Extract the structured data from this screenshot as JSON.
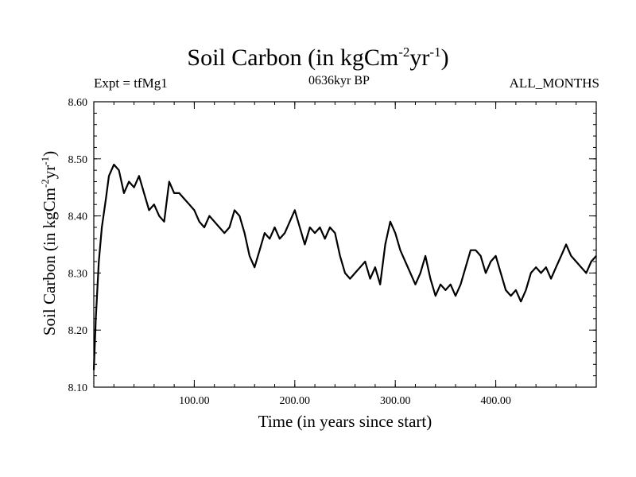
{
  "chart_data": {
    "type": "line",
    "title_main": "Soil Carbon (in kgCm",
    "title_exp1": "-2",
    "title_mid": "yr",
    "title_exp2": "-1",
    "title_end": ")",
    "top_left": "Expt = tfMg1",
    "top_center": "0636kyr BP",
    "top_right": "ALL_MONTHS",
    "xlabel": "Time (in years since start)",
    "ylabel_main": "Soil Carbon (in kgCm",
    "ylabel_exp1": "-2",
    "ylabel_mid": "yr",
    "ylabel_exp2": "-1",
    "ylabel_end": ")",
    "xlim": [
      0,
      500
    ],
    "ylim": [
      8.1,
      8.6
    ],
    "xticks": [
      100,
      200,
      300,
      400
    ],
    "xtick_labels": [
      "100.00",
      "200.00",
      "300.00",
      "400.00"
    ],
    "yticks": [
      8.1,
      8.2,
      8.3,
      8.4,
      8.5,
      8.6
    ],
    "ytick_labels": [
      "8.10",
      "8.20",
      "8.30",
      "8.40",
      "8.50",
      "8.60"
    ],
    "grid": false,
    "line_color": "#000000",
    "series": [
      {
        "x": [
          0,
          2,
          5,
          8,
          12,
          15,
          20,
          25,
          30,
          35,
          40,
          45,
          50,
          55,
          60,
          65,
          70,
          75,
          80,
          85,
          90,
          95,
          100,
          105,
          110,
          115,
          120,
          125,
          130,
          135,
          140,
          145,
          150,
          155,
          160,
          165,
          170,
          175,
          180,
          185,
          190,
          195,
          200,
          205,
          210,
          215,
          220,
          225,
          230,
          235,
          240,
          245,
          250,
          255,
          260,
          265,
          270,
          275,
          280,
          285,
          290,
          295,
          300,
          305,
          310,
          315,
          320,
          325,
          330,
          335,
          340,
          345,
          350,
          355,
          360,
          365,
          370,
          375,
          380,
          385,
          390,
          395,
          400,
          405,
          410,
          415,
          420,
          425,
          430,
          435,
          440,
          445,
          450,
          455,
          460,
          465,
          470,
          475,
          480,
          485,
          490,
          495,
          500
        ],
        "y": [
          8.13,
          8.22,
          8.32,
          8.38,
          8.43,
          8.47,
          8.49,
          8.48,
          8.44,
          8.46,
          8.45,
          8.47,
          8.44,
          8.41,
          8.42,
          8.4,
          8.39,
          8.46,
          8.44,
          8.44,
          8.43,
          8.42,
          8.41,
          8.39,
          8.38,
          8.4,
          8.39,
          8.38,
          8.37,
          8.38,
          8.41,
          8.4,
          8.37,
          8.33,
          8.31,
          8.34,
          8.37,
          8.36,
          8.38,
          8.36,
          8.37,
          8.39,
          8.41,
          8.38,
          8.35,
          8.38,
          8.37,
          8.38,
          8.36,
          8.38,
          8.37,
          8.33,
          8.3,
          8.29,
          8.3,
          8.31,
          8.32,
          8.29,
          8.31,
          8.28,
          8.35,
          8.39,
          8.37,
          8.34,
          8.32,
          8.3,
          8.28,
          8.3,
          8.33,
          8.29,
          8.26,
          8.28,
          8.27,
          8.28,
          8.26,
          8.28,
          8.31,
          8.34,
          8.34,
          8.33,
          8.3,
          8.32,
          8.33,
          8.3,
          8.27,
          8.26,
          8.27,
          8.25,
          8.27,
          8.3,
          8.31,
          8.3,
          8.31,
          8.29,
          8.31,
          8.33,
          8.35,
          8.33,
          8.32,
          8.31,
          8.3,
          8.32,
          8.33
        ]
      }
    ]
  }
}
